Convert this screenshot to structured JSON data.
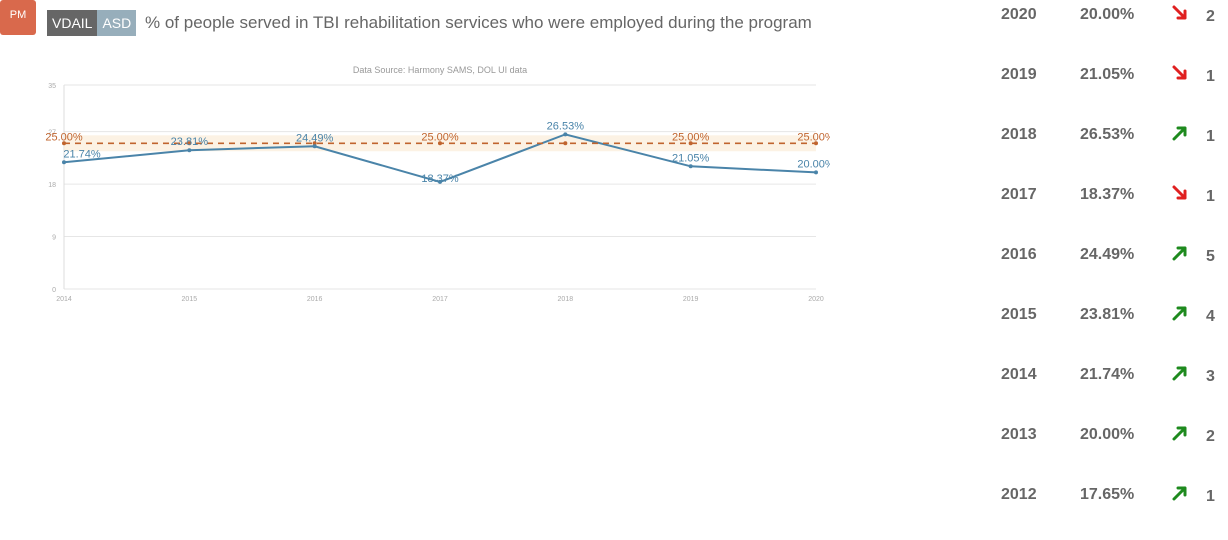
{
  "header": {
    "pm_label": "PM",
    "tag_primary": "VDAIL",
    "tag_secondary": "ASD",
    "title": "% of people served in TBI rehabilitation services who were employed during the program"
  },
  "colors": {
    "actual": "#4a84a9",
    "target": "#c0642e",
    "target_band": "#fbecd9",
    "up": "#1e8a1e",
    "down": "#e02020"
  },
  "chart_data": {
    "type": "line",
    "title": "Data Source: Harmony SAMS, DOL UI data",
    "x": [
      "2014",
      "2015",
      "2016",
      "2017",
      "2018",
      "2019",
      "2020"
    ],
    "series": [
      {
        "name": "",
        "values": [
          21.74,
          23.81,
          24.49,
          18.37,
          26.53,
          21.05,
          20.0
        ],
        "labels": [
          "21.74%",
          "23.81%",
          "24.49%",
          "18.37%",
          "26.53%",
          "21.05%",
          "20.00%"
        ]
      },
      {
        "name": "",
        "values": [
          25.0,
          25.0,
          25.0,
          25.0,
          25.0,
          25.0,
          25.0
        ],
        "labels": [
          "25.00%",
          "",
          "",
          "25.00%",
          "",
          "25.00%",
          "25.00%"
        ]
      }
    ],
    "yticks": [
      "0",
      "9",
      "18",
      "27",
      "35"
    ],
    "ylim": [
      0,
      35
    ],
    "grid": true
  },
  "year_table": [
    {
      "year": "2020",
      "value": "20.00%",
      "trend": "down",
      "count": "2"
    },
    {
      "year": "2019",
      "value": "21.05%",
      "trend": "down",
      "count": "1"
    },
    {
      "year": "2018",
      "value": "26.53%",
      "trend": "up",
      "count": "1"
    },
    {
      "year": "2017",
      "value": "18.37%",
      "trend": "down",
      "count": "1"
    },
    {
      "year": "2016",
      "value": "24.49%",
      "trend": "up",
      "count": "5"
    },
    {
      "year": "2015",
      "value": "23.81%",
      "trend": "up",
      "count": "4"
    },
    {
      "year": "2014",
      "value": "21.74%",
      "trend": "up",
      "count": "3"
    },
    {
      "year": "2013",
      "value": "20.00%",
      "trend": "up",
      "count": "2"
    },
    {
      "year": "2012",
      "value": "17.65%",
      "trend": "up",
      "count": "1"
    }
  ]
}
